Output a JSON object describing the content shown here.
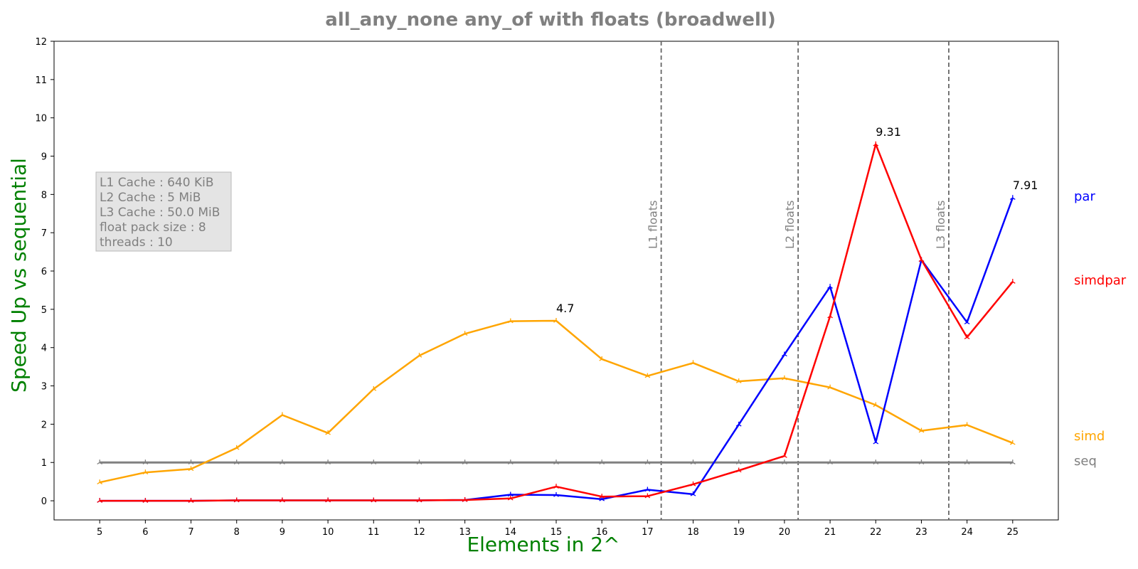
{
  "chart_data": {
    "type": "line",
    "title": "all_any_none any_of with floats  (broadwell)",
    "xlabel": "Elements in 2^",
    "ylabel": "Speed Up vs sequential",
    "x": [
      5,
      6,
      7,
      8,
      9,
      10,
      11,
      12,
      13,
      14,
      15,
      16,
      17,
      18,
      19,
      20,
      21,
      22,
      23,
      24,
      25
    ],
    "xlim": [
      4,
      26
    ],
    "ylim": [
      -0.5,
      12
    ],
    "yticks": [
      0,
      1,
      2,
      3,
      4,
      5,
      6,
      7,
      8,
      9,
      10,
      11,
      12
    ],
    "grid": false,
    "series": [
      {
        "name": "seq",
        "color": "#808080",
        "values": [
          1,
          1,
          1,
          1,
          1,
          1,
          1,
          1,
          1,
          1,
          1,
          1,
          1,
          1,
          1,
          1,
          1,
          1,
          1,
          1,
          1
        ]
      },
      {
        "name": "simd",
        "color": "#FFA500",
        "values": [
          0.48,
          0.74,
          0.83,
          1.38,
          2.24,
          1.77,
          2.92,
          3.79,
          4.36,
          4.69,
          4.7,
          3.7,
          3.26,
          3.6,
          3.12,
          3.2,
          2.96,
          2.5,
          1.83,
          1.98,
          1.51
        ]
      },
      {
        "name": "par",
        "color": "#0000FF",
        "values": [
          0.0,
          0.0,
          0.0,
          0.01,
          0.01,
          0.01,
          0.01,
          0.01,
          0.02,
          0.16,
          0.15,
          0.04,
          0.29,
          0.17,
          1.99,
          3.82,
          5.59,
          1.53,
          6.29,
          4.66,
          7.91
        ]
      },
      {
        "name": "simdpar",
        "color": "#FF0000",
        "values": [
          0.0,
          0.0,
          0.0,
          0.01,
          0.01,
          0.01,
          0.01,
          0.01,
          0.02,
          0.06,
          0.37,
          0.11,
          0.12,
          0.43,
          0.79,
          1.17,
          4.82,
          9.31,
          6.29,
          4.27,
          5.72
        ]
      }
    ],
    "annotations": [
      {
        "x": 15,
        "y": 4.7,
        "text": "4.7"
      },
      {
        "x": 22,
        "y": 9.31,
        "text": "9.31"
      },
      {
        "x": 25,
        "y": 7.91,
        "text": "7.91"
      }
    ],
    "vlines": [
      {
        "x": 17.3,
        "label": "L1 floats"
      },
      {
        "x": 20.3,
        "label": "L2 floats"
      },
      {
        "x": 23.6,
        "label": "L3 floats"
      }
    ],
    "info_box": [
      "L1 Cache : 640 KiB",
      "L2 Cache : 5 MiB",
      "L3 Cache : 50.0 MiB",
      "float pack size : 8",
      "threads : 10"
    ],
    "legend_placement": "right-outside"
  }
}
